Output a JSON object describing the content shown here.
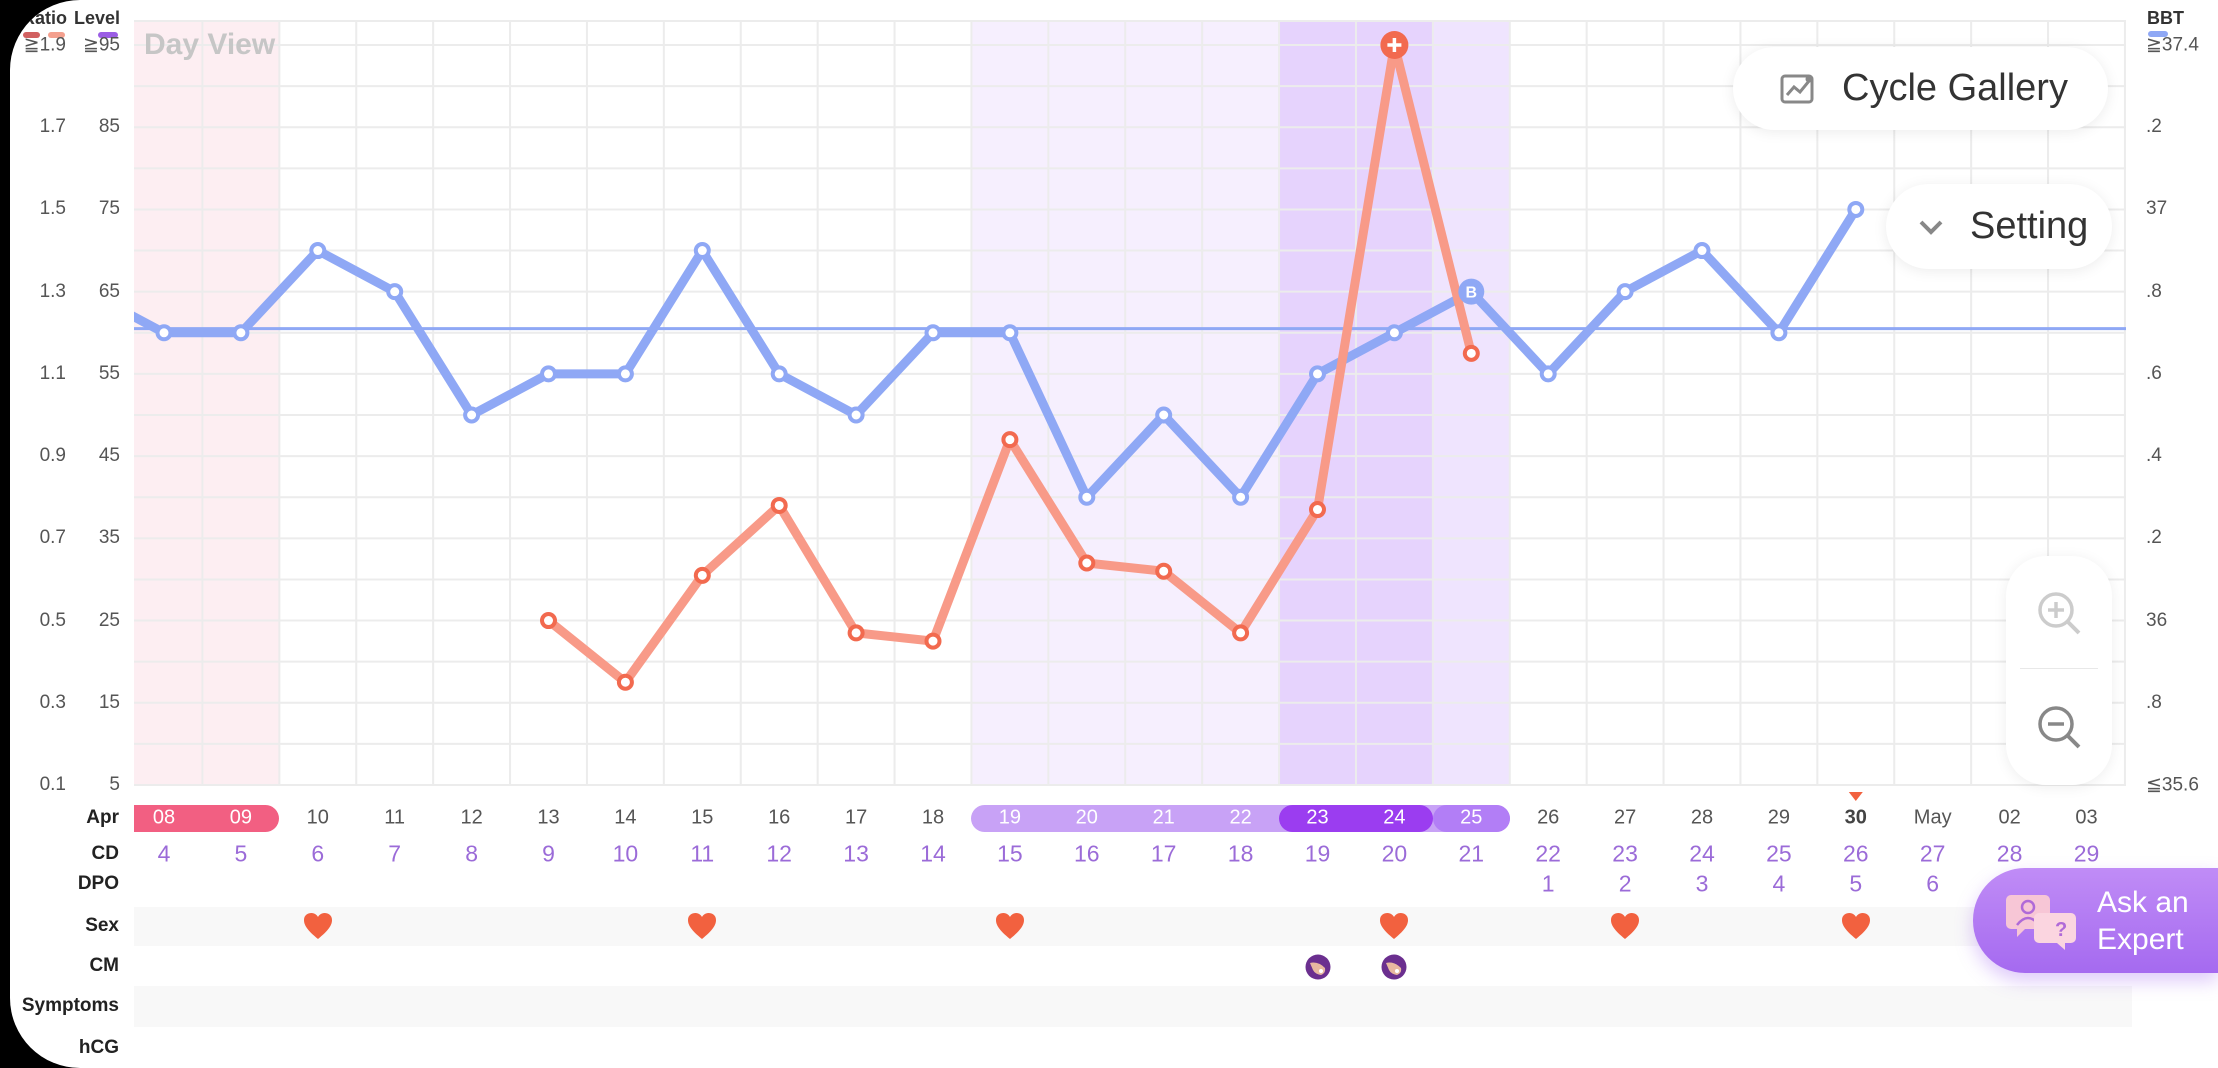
{
  "legend": {
    "ratio": "Ratio",
    "level": "Level",
    "bbt": "BBT"
  },
  "view_label": "Day View",
  "buttons": {
    "cycle_gallery": "Cycle Gallery",
    "setting": "Setting",
    "ask_expert_line1": "Ask an",
    "ask_expert_line2": "Expert"
  },
  "row_labels": {
    "month": "Apr",
    "cd": "CD",
    "dpo": "DPO",
    "sex": "Sex",
    "cm": "CM",
    "symptoms": "Symptoms",
    "hcg": "hCG"
  },
  "colors": {
    "bbt_line": "#8fa8f5",
    "ratio_line": "#f89a88",
    "ratio_peak": "#f26a4f",
    "period": "#f25f82",
    "fertile": "#c8a2f6",
    "peak": "#9b3df0",
    "ovulation": "#b27ef6",
    "cd_text": "#9b6bd8",
    "heart": "#f2613f",
    "ratio_legend_dark": "#d16060",
    "ratio_legend_light": "#f4a08e",
    "level_legend": "#9b5de5"
  },
  "chart_data": {
    "type": "line",
    "title": "Day View",
    "tick_levels": [
      95,
      85,
      75,
      65,
      55,
      45,
      35,
      25,
      15,
      5
    ],
    "left_axis_ratio_ticks": [
      "≧1.9",
      "1.7",
      "1.5",
      "1.3",
      "1.1",
      "0.9",
      "0.7",
      "0.5",
      "0.3",
      "0.1"
    ],
    "left_axis_level_ticks": [
      "≧95",
      "85",
      "75",
      "65",
      "55",
      "45",
      "35",
      "25",
      "15",
      "5"
    ],
    "right_axis_bbt_ticks": [
      "≧37.4",
      ".2",
      "37",
      ".8",
      ".6",
      ".4",
      ".2",
      "36",
      ".8",
      "≦35.6"
    ],
    "level_range": [
      5,
      95
    ],
    "ratio_range": [
      0.1,
      1.9
    ],
    "bbt_range": [
      35.6,
      37.4
    ],
    "grid": true,
    "dates": [
      "08",
      "09",
      "10",
      "11",
      "12",
      "13",
      "14",
      "15",
      "16",
      "17",
      "18",
      "19",
      "20",
      "21",
      "22",
      "23",
      "24",
      "25",
      "26",
      "27",
      "28",
      "29",
      "30",
      "May",
      "02",
      "03"
    ],
    "cycle_days": [
      "4",
      "5",
      "6",
      "7",
      "8",
      "9",
      "10",
      "11",
      "12",
      "13",
      "14",
      "15",
      "16",
      "17",
      "18",
      "19",
      "20",
      "21",
      "22",
      "23",
      "24",
      "25",
      "26",
      "27",
      "28",
      "29"
    ],
    "dpo": [
      "",
      "",
      "",
      "",
      "",
      "",
      "",
      "",
      "",
      "",
      "",
      "",
      "",
      "",
      "",
      "",
      "",
      "",
      "1",
      "2",
      "3",
      "4",
      "5",
      "6",
      "",
      ""
    ],
    "period": [
      "08",
      "09"
    ],
    "fertile": [
      "19",
      "20",
      "21",
      "22"
    ],
    "peak": [
      "23",
      "24"
    ],
    "ovulation": [
      "25"
    ],
    "today": "30",
    "bbt_prev": 36.8,
    "bbt": [
      36.7,
      36.7,
      36.9,
      36.8,
      36.5,
      36.6,
      36.6,
      36.9,
      36.6,
      36.5,
      36.7,
      36.7,
      36.3,
      36.5,
      36.3,
      36.6,
      36.7,
      36.8,
      36.6,
      36.8,
      36.9,
      36.7,
      37.0,
      null,
      null,
      null
    ],
    "coverline": 36.71,
    "bbt_marker": {
      "date": "25",
      "label": "B"
    },
    "ratio": [
      null,
      null,
      null,
      null,
      null,
      0.5,
      0.35,
      0.61,
      0.78,
      0.47,
      0.45,
      0.94,
      0.64,
      0.62,
      0.47,
      0.77,
      1.9,
      1.15,
      null,
      null,
      null,
      null,
      null,
      null,
      null,
      null
    ],
    "ratio_peak": {
      "date": "24",
      "label": "+"
    },
    "sex": [
      "10",
      "15",
      "19",
      "24",
      "27",
      "30"
    ],
    "cm": [
      "23",
      "24"
    ]
  }
}
